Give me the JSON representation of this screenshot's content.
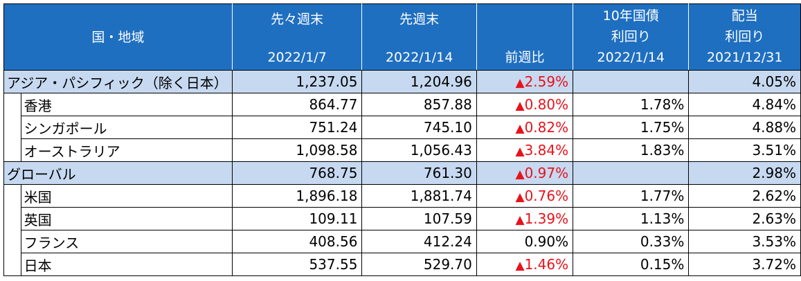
{
  "header": {
    "region": "国・地域",
    "prev_week_end": "先々週末",
    "prev_week_end_date": "2022/1/7",
    "last_week_end": "先週末",
    "last_week_end_date": "2022/1/14",
    "wow_change": "前週比",
    "bond_yield_line1": "10年国債",
    "bond_yield_line2": "利回り",
    "bond_yield_date": "2022/1/14",
    "dividend_line1": "配当",
    "dividend_line2": "利回り",
    "dividend_date": "2021/12/31"
  },
  "rows": [
    {
      "name": "アジア・パシフィック（除く日本）",
      "prev": "1,237.05",
      "last": "1,204.96",
      "change": "2.59%",
      "change_marker": "▲",
      "bond": "",
      "dividend": "4.05%"
    },
    {
      "name": "香港",
      "prev": "864.77",
      "last": "857.88",
      "change": "0.80%",
      "change_marker": "▲",
      "bond": "1.78%",
      "dividend": "4.84%"
    },
    {
      "name": "シンガポール",
      "prev": "751.24",
      "last": "745.10",
      "change": "0.82%",
      "change_marker": "▲",
      "bond": "1.75%",
      "dividend": "4.88%"
    },
    {
      "name": "オーストラリア",
      "prev": "1,098.58",
      "last": "1,056.43",
      "change": "3.84%",
      "change_marker": "▲",
      "bond": "1.83%",
      "dividend": "3.51%"
    },
    {
      "name": "グローバル",
      "prev": "768.75",
      "last": "761.30",
      "change": "0.97%",
      "change_marker": "▲",
      "bond": "",
      "dividend": "2.98%"
    },
    {
      "name": "米国",
      "prev": "1,896.18",
      "last": "1,881.74",
      "change": "0.76%",
      "change_marker": "▲",
      "bond": "1.77%",
      "dividend": "2.62%"
    },
    {
      "name": "英国",
      "prev": "109.11",
      "last": "107.59",
      "change": "1.39%",
      "change_marker": "▲",
      "bond": "1.13%",
      "dividend": "2.63%"
    },
    {
      "name": "フランス",
      "prev": "408.56",
      "last": "412.24",
      "change": "0.90%",
      "change_marker": "",
      "bond": "0.33%",
      "dividend": "3.53%"
    },
    {
      "name": "日本",
      "prev": "537.55",
      "last": "529.70",
      "change": "1.46%",
      "change_marker": "▲",
      "bond": "0.15%",
      "dividend": "3.72%"
    }
  ],
  "colors": {
    "header_bg": "#1f6fc1",
    "region_row_bg": "#c6d9f0",
    "negative_text": "#e8121b"
  }
}
